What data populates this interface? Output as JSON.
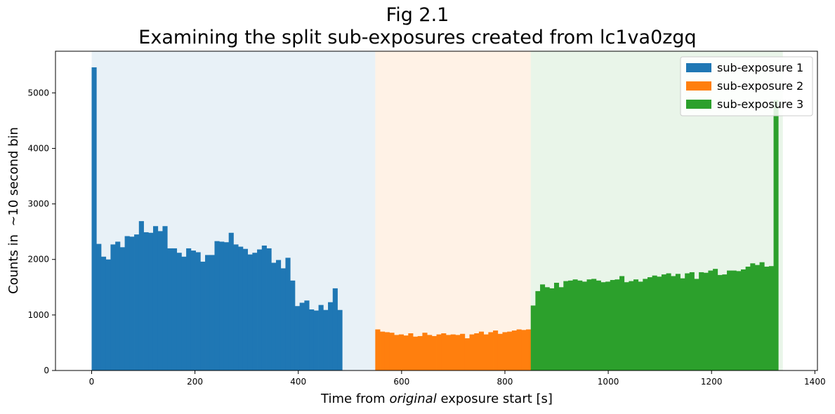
{
  "chart_data": {
    "type": "bar",
    "title_line1": "Fig 2.1",
    "title_line2": "Examining the split sub-exposures created from lc1va0zgq",
    "xlabel_pre": "Time from ",
    "xlabel_italic": "original",
    "xlabel_post": " exposure start [s]",
    "ylabel": "Counts in  ~10 second bin",
    "xlim": [
      -70,
      1405
    ],
    "ylim": [
      0,
      5750
    ],
    "xticks": [
      0,
      200,
      400,
      600,
      800,
      1000,
      1200,
      1400
    ],
    "yticks": [
      0,
      1000,
      2000,
      3000,
      4000,
      5000
    ],
    "grid": false,
    "legend_position": "top-right",
    "series": [
      {
        "name": "sub-exposure 1",
        "color": "#1f77b4",
        "shade_color": "#1f77b4",
        "shade_range": [
          0,
          549
        ],
        "bin_start": 0,
        "bin_width": 9.15,
        "values": [
          5460,
          2280,
          2050,
          2000,
          2270,
          2320,
          2220,
          2420,
          2410,
          2450,
          2690,
          2490,
          2480,
          2600,
          2510,
          2600,
          2200,
          2200,
          2120,
          2050,
          2200,
          2160,
          2130,
          1960,
          2080,
          2080,
          2330,
          2320,
          2310,
          2480,
          2270,
          2230,
          2190,
          2090,
          2120,
          2180,
          2250,
          2200,
          1940,
          1990,
          1840,
          2030,
          1620,
          1160,
          1220,
          1260,
          1100,
          1080,
          1180,
          1090,
          1230,
          1480,
          1090
        ]
      },
      {
        "name": "sub-exposure 2",
        "color": "#ff7f0e",
        "shade_color": "#ff7f0e",
        "shade_range": [
          549,
          850
        ],
        "bin_start": 549,
        "bin_width": 9.12,
        "values": [
          740,
          700,
          690,
          680,
          640,
          650,
          630,
          670,
          610,
          620,
          680,
          640,
          620,
          650,
          670,
          640,
          650,
          640,
          660,
          580,
          650,
          670,
          700,
          650,
          690,
          720,
          660,
          690,
          700,
          720,
          740,
          730,
          740
        ]
      },
      {
        "name": "sub-exposure 3",
        "color": "#2ca02c",
        "shade_color": "#2ca02c",
        "shade_range": [
          850,
          1338
        ],
        "bin_start": 850,
        "bin_width": 9.04,
        "values": [
          1170,
          1430,
          1550,
          1500,
          1480,
          1580,
          1500,
          1610,
          1620,
          1640,
          1620,
          1600,
          1640,
          1650,
          1620,
          1590,
          1600,
          1630,
          1640,
          1700,
          1590,
          1610,
          1640,
          1600,
          1650,
          1680,
          1710,
          1690,
          1730,
          1750,
          1700,
          1740,
          1660,
          1750,
          1770,
          1650,
          1770,
          1760,
          1800,
          1830,
          1720,
          1730,
          1800,
          1800,
          1790,
          1820,
          1870,
          1930,
          1900,
          1950,
          1870,
          1880,
          4870
        ]
      }
    ]
  }
}
